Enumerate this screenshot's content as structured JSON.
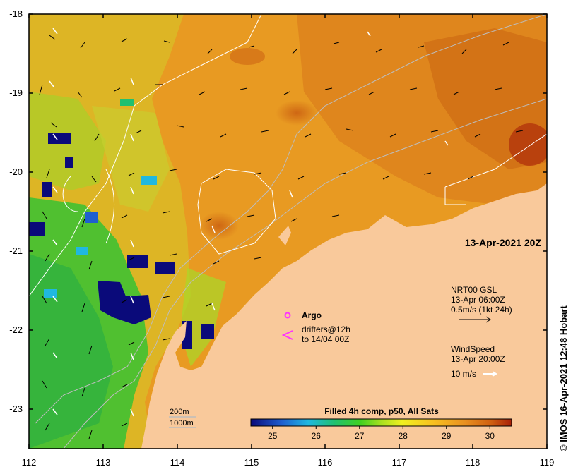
{
  "map": {
    "timestamp_label": "13-Apr-2021 20Z",
    "credit": "© IMOS 16-Apr-2021 12:48 Hobart",
    "lon_ticks": [
      "112",
      "113",
      "114",
      "115",
      "116",
      "117",
      "118",
      "119"
    ],
    "lat_ticks": [
      "-18",
      "-19",
      "-20",
      "-21",
      "-22",
      "-23"
    ],
    "lon_range": [
      112,
      119
    ],
    "lat_range": [
      -23.5,
      -18
    ]
  },
  "legend": {
    "argo_label": "Argo",
    "drifters_line1": "drifters@12h",
    "drifters_line2": "to 14/04 00Z",
    "current_title": "NRT00 GSL",
    "current_time": "13-Apr 06:00Z",
    "current_scale": "0.5m/s (1kt 24h)",
    "wind_title": "WindSpeed",
    "wind_time": "13-Apr 20:00Z",
    "wind_scale": "10 m/s",
    "contour_200": "200m",
    "contour_1000": "1000m"
  },
  "colorbar": {
    "title": "Filled 4h comp, p50, All Sats",
    "ticks": [
      "25",
      "26",
      "27",
      "28",
      "29",
      "30"
    ],
    "range": [
      24.5,
      30.5
    ],
    "colors": [
      "#0a0a7a",
      "#1f5fd0",
      "#20b8e0",
      "#20c070",
      "#40d020",
      "#a8e020",
      "#f0f020",
      "#f8c020",
      "#e89020",
      "#d06010",
      "#a82008"
    ]
  },
  "colors": {
    "land": "#f9c99b",
    "contour": "#bdbdbd",
    "current_arrow": "#000000",
    "wind_arrow": "#ffffff",
    "argo": "#ff33ff"
  }
}
